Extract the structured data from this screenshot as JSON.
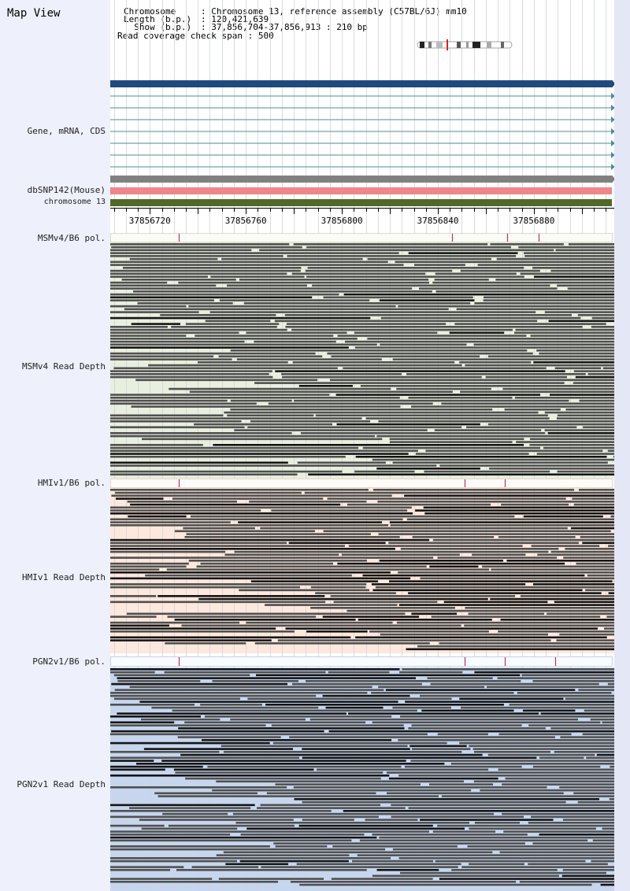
{
  "panel": {
    "title": "Map View"
  },
  "info": {
    "chromosome_label": "Chromosome",
    "chromosome_value": "Chromosome 13, reference assembly (C57BL/6J) mm10",
    "length_label": "Length (b.p.)",
    "length_value": "120,421,639",
    "show_label": "Show (b.p.)",
    "show_value": "37,856,704-37,856,913 : 210 bp",
    "coverage_label": "Read coverage check span",
    "coverage_value": "500"
  },
  "tracks": {
    "gene": "Gene, mRNA, CDS",
    "dbsnp": "dbSNP142(Mouse)",
    "chromosome": "chromosome 13",
    "msm_pol": "MSMv4/B6 pol.",
    "msm_depth": "MSMv4 Read Depth",
    "hmi_pol": "HMIv1/B6 pol.",
    "hmi_depth": "HMIv1 Read Depth",
    "pgn_pol": "PGN2v1/B6 pol.",
    "pgn_depth": "PGN2v1 Read Depth"
  },
  "ruler": {
    "start": 37856704,
    "end": 37856913,
    "labels": [
      "37856720",
      "37856760",
      "37856800",
      "37856840",
      "37856880"
    ]
  },
  "colors": {
    "gene_main": "#1e4a7e",
    "transcript": "#4b8d94",
    "snp_gray": "#808080",
    "dbsnp": "#f0858a",
    "chromosome": "#4f6a28",
    "msm_bg": "#e8efdf",
    "hmi_bg": "#fde8dd",
    "pgn_bg": "#c6d6ef",
    "read": "#505050",
    "read_dark": "#151515",
    "snp_mark": "#c0306a"
  },
  "pol_marks": {
    "msm": [
      37856732,
      37856846,
      37856869,
      37856882
    ],
    "hmi": [
      37856732,
      37856851,
      37856868
    ],
    "pgn": [
      37856732,
      37856851,
      37856868,
      37856889
    ]
  }
}
